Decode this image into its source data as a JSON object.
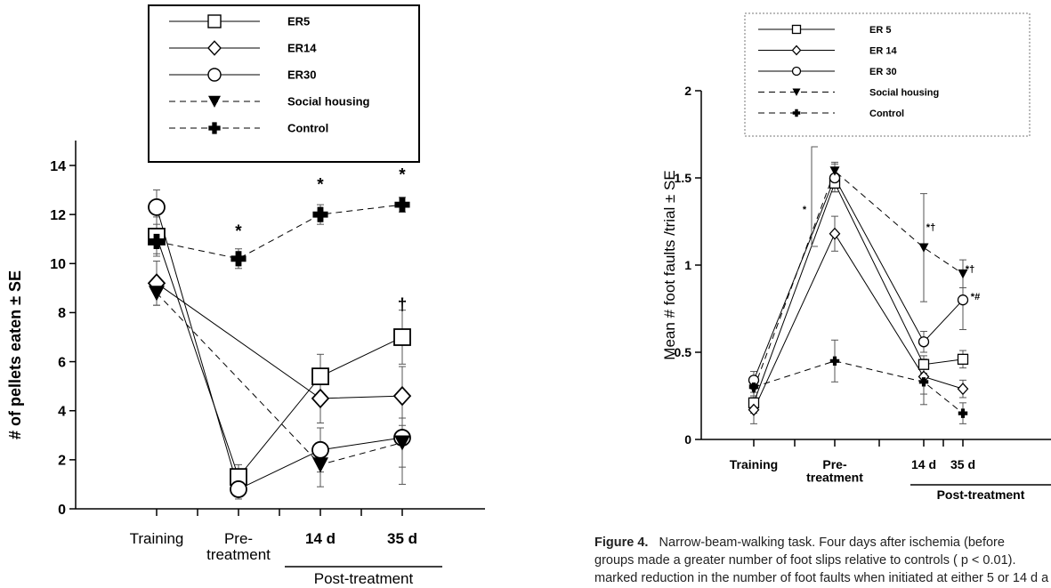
{
  "chart_data": [
    {
      "type": "line",
      "ylabel": "# of pellets eaten ± SE",
      "ylim": [
        0,
        14
      ],
      "yticks": [
        "0",
        "2",
        "4",
        "6",
        "8",
        "10",
        "12",
        "14"
      ],
      "categories": [
        "Training",
        "Pre-\ntreatment",
        "14 d",
        "35 d"
      ],
      "bracket_label": "Post-treatment",
      "legend_position": "top",
      "series": [
        {
          "name": "ER5",
          "marker": "square",
          "dash": false,
          "values": [
            11.1,
            1.3,
            5.4,
            7.0
          ],
          "errors": [
            0.8,
            0.5,
            0.9,
            1.1
          ]
        },
        {
          "name": "ER14",
          "marker": "diamond",
          "dash": false,
          "values": [
            9.2,
            null,
            4.5,
            4.6
          ],
          "errors": [
            0.9,
            null,
            1.0,
            1.2
          ]
        },
        {
          "name": "ER30",
          "marker": "circle",
          "dash": false,
          "values": [
            12.3,
            0.8,
            2.4,
            2.9
          ],
          "errors": [
            0.7,
            0.4,
            0.9,
            1.9
          ]
        },
        {
          "name": "Social housing",
          "marker": "triangle-down",
          "dash": true,
          "values": [
            8.8,
            null,
            1.8,
            2.7
          ],
          "errors": [
            0.5,
            null,
            0.9,
            1.0
          ]
        },
        {
          "name": "Control",
          "marker": "cross",
          "dash": true,
          "values": [
            10.9,
            10.2,
            12.0,
            12.4
          ],
          "errors": [
            0.5,
            0.4,
            0.4,
            0.3
          ]
        }
      ],
      "annotations": [
        {
          "text": "*",
          "category": 1,
          "y": 11.1
        },
        {
          "text": "*",
          "category": 2,
          "y": 13.0
        },
        {
          "text": "*",
          "category": 3,
          "y": 13.4
        },
        {
          "text": "†",
          "category": 3,
          "y": 8.1
        }
      ]
    },
    {
      "type": "line",
      "ylabel": "Mean # foot faults /trial  ± SE",
      "ylim": [
        0,
        2
      ],
      "yticks": [
        "0",
        "0.5",
        "1",
        "1.5",
        "2"
      ],
      "categories": [
        "Training",
        "Pre-\ntreatment",
        "14 d",
        "35 d"
      ],
      "bracket_label": "Post-treatment",
      "legend_position": "top",
      "series": [
        {
          "name": "ER 5",
          "marker": "square",
          "dash": false,
          "values": [
            0.21,
            1.47,
            0.43,
            0.46
          ],
          "errors": [
            0.06,
            0.05,
            0.05,
            0.05
          ]
        },
        {
          "name": "ER 14",
          "marker": "diamond",
          "dash": false,
          "values": [
            0.17,
            1.18,
            0.36,
            0.29
          ],
          "errors": [
            0.08,
            0.1,
            0.1,
            0.05
          ]
        },
        {
          "name": "ER 30",
          "marker": "circle",
          "dash": false,
          "values": [
            0.34,
            1.5,
            0.56,
            0.8
          ],
          "errors": [
            0.05,
            0.08,
            0.06,
            0.17
          ]
        },
        {
          "name": "Social housing",
          "marker": "triangle-down",
          "dash": true,
          "values": [
            0.29,
            1.54,
            1.1,
            0.95
          ],
          "errors": [
            0.05,
            0.05,
            0.31,
            0.08
          ]
        },
        {
          "name": "Control",
          "marker": "cross",
          "dash": true,
          "values": [
            0.3,
            0.45,
            0.33,
            0.15
          ],
          "errors": [
            0.05,
            0.12,
            0.13,
            0.06
          ]
        }
      ],
      "annotations": [
        {
          "text": "*",
          "category": 0,
          "y": 1.3
        },
        {
          "text": "*†",
          "category": 2,
          "y": 1.2
        },
        {
          "text": "*†",
          "category": 3,
          "y": 0.96
        },
        {
          "text": "*#",
          "category": 3,
          "y": 0.8
        }
      ]
    }
  ],
  "caption": {
    "label": "Figure 4.",
    "line1": "Narrow-beam-walking task. Four days after ischemia (before",
    "line2": "groups made a greater number of foot slips relative to controls ( p < 0.01).",
    "line3": "marked reduction in the number of foot faults when initiated at either 5 or 14 d a"
  }
}
